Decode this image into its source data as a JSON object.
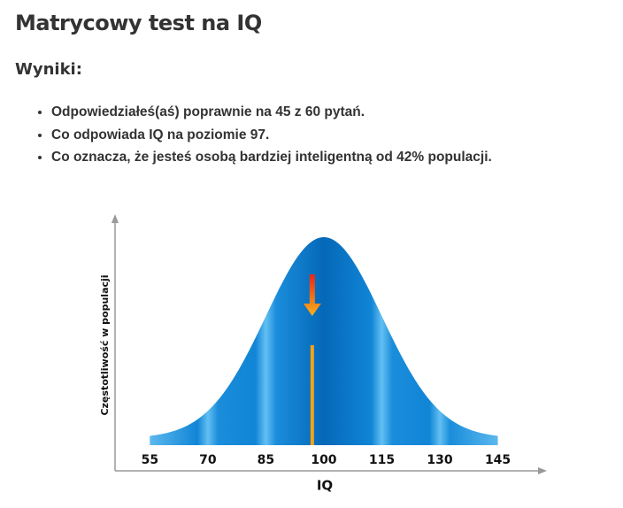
{
  "header": {
    "title": "Matrycowy test na IQ"
  },
  "results": {
    "heading": "Wyniki:",
    "items": [
      "Odpowiedziałeś(aś) poprawnie na 45 z 60 pytań.",
      "Co odpowiada IQ na poziomie 97.",
      "Co oznacza, że jesteś osobą bardziej inteligentną od 42% populacji."
    ]
  },
  "chart_data": {
    "type": "bell",
    "x_label": "IQ",
    "y_label": "Częstotliwość w populacji",
    "xlim": [
      46,
      157
    ],
    "xticks": [
      55,
      70,
      85,
      100,
      115,
      130,
      145
    ],
    "marker": 97,
    "color": "#0a7fd0",
    "marker_color": "#f5a21b"
  }
}
